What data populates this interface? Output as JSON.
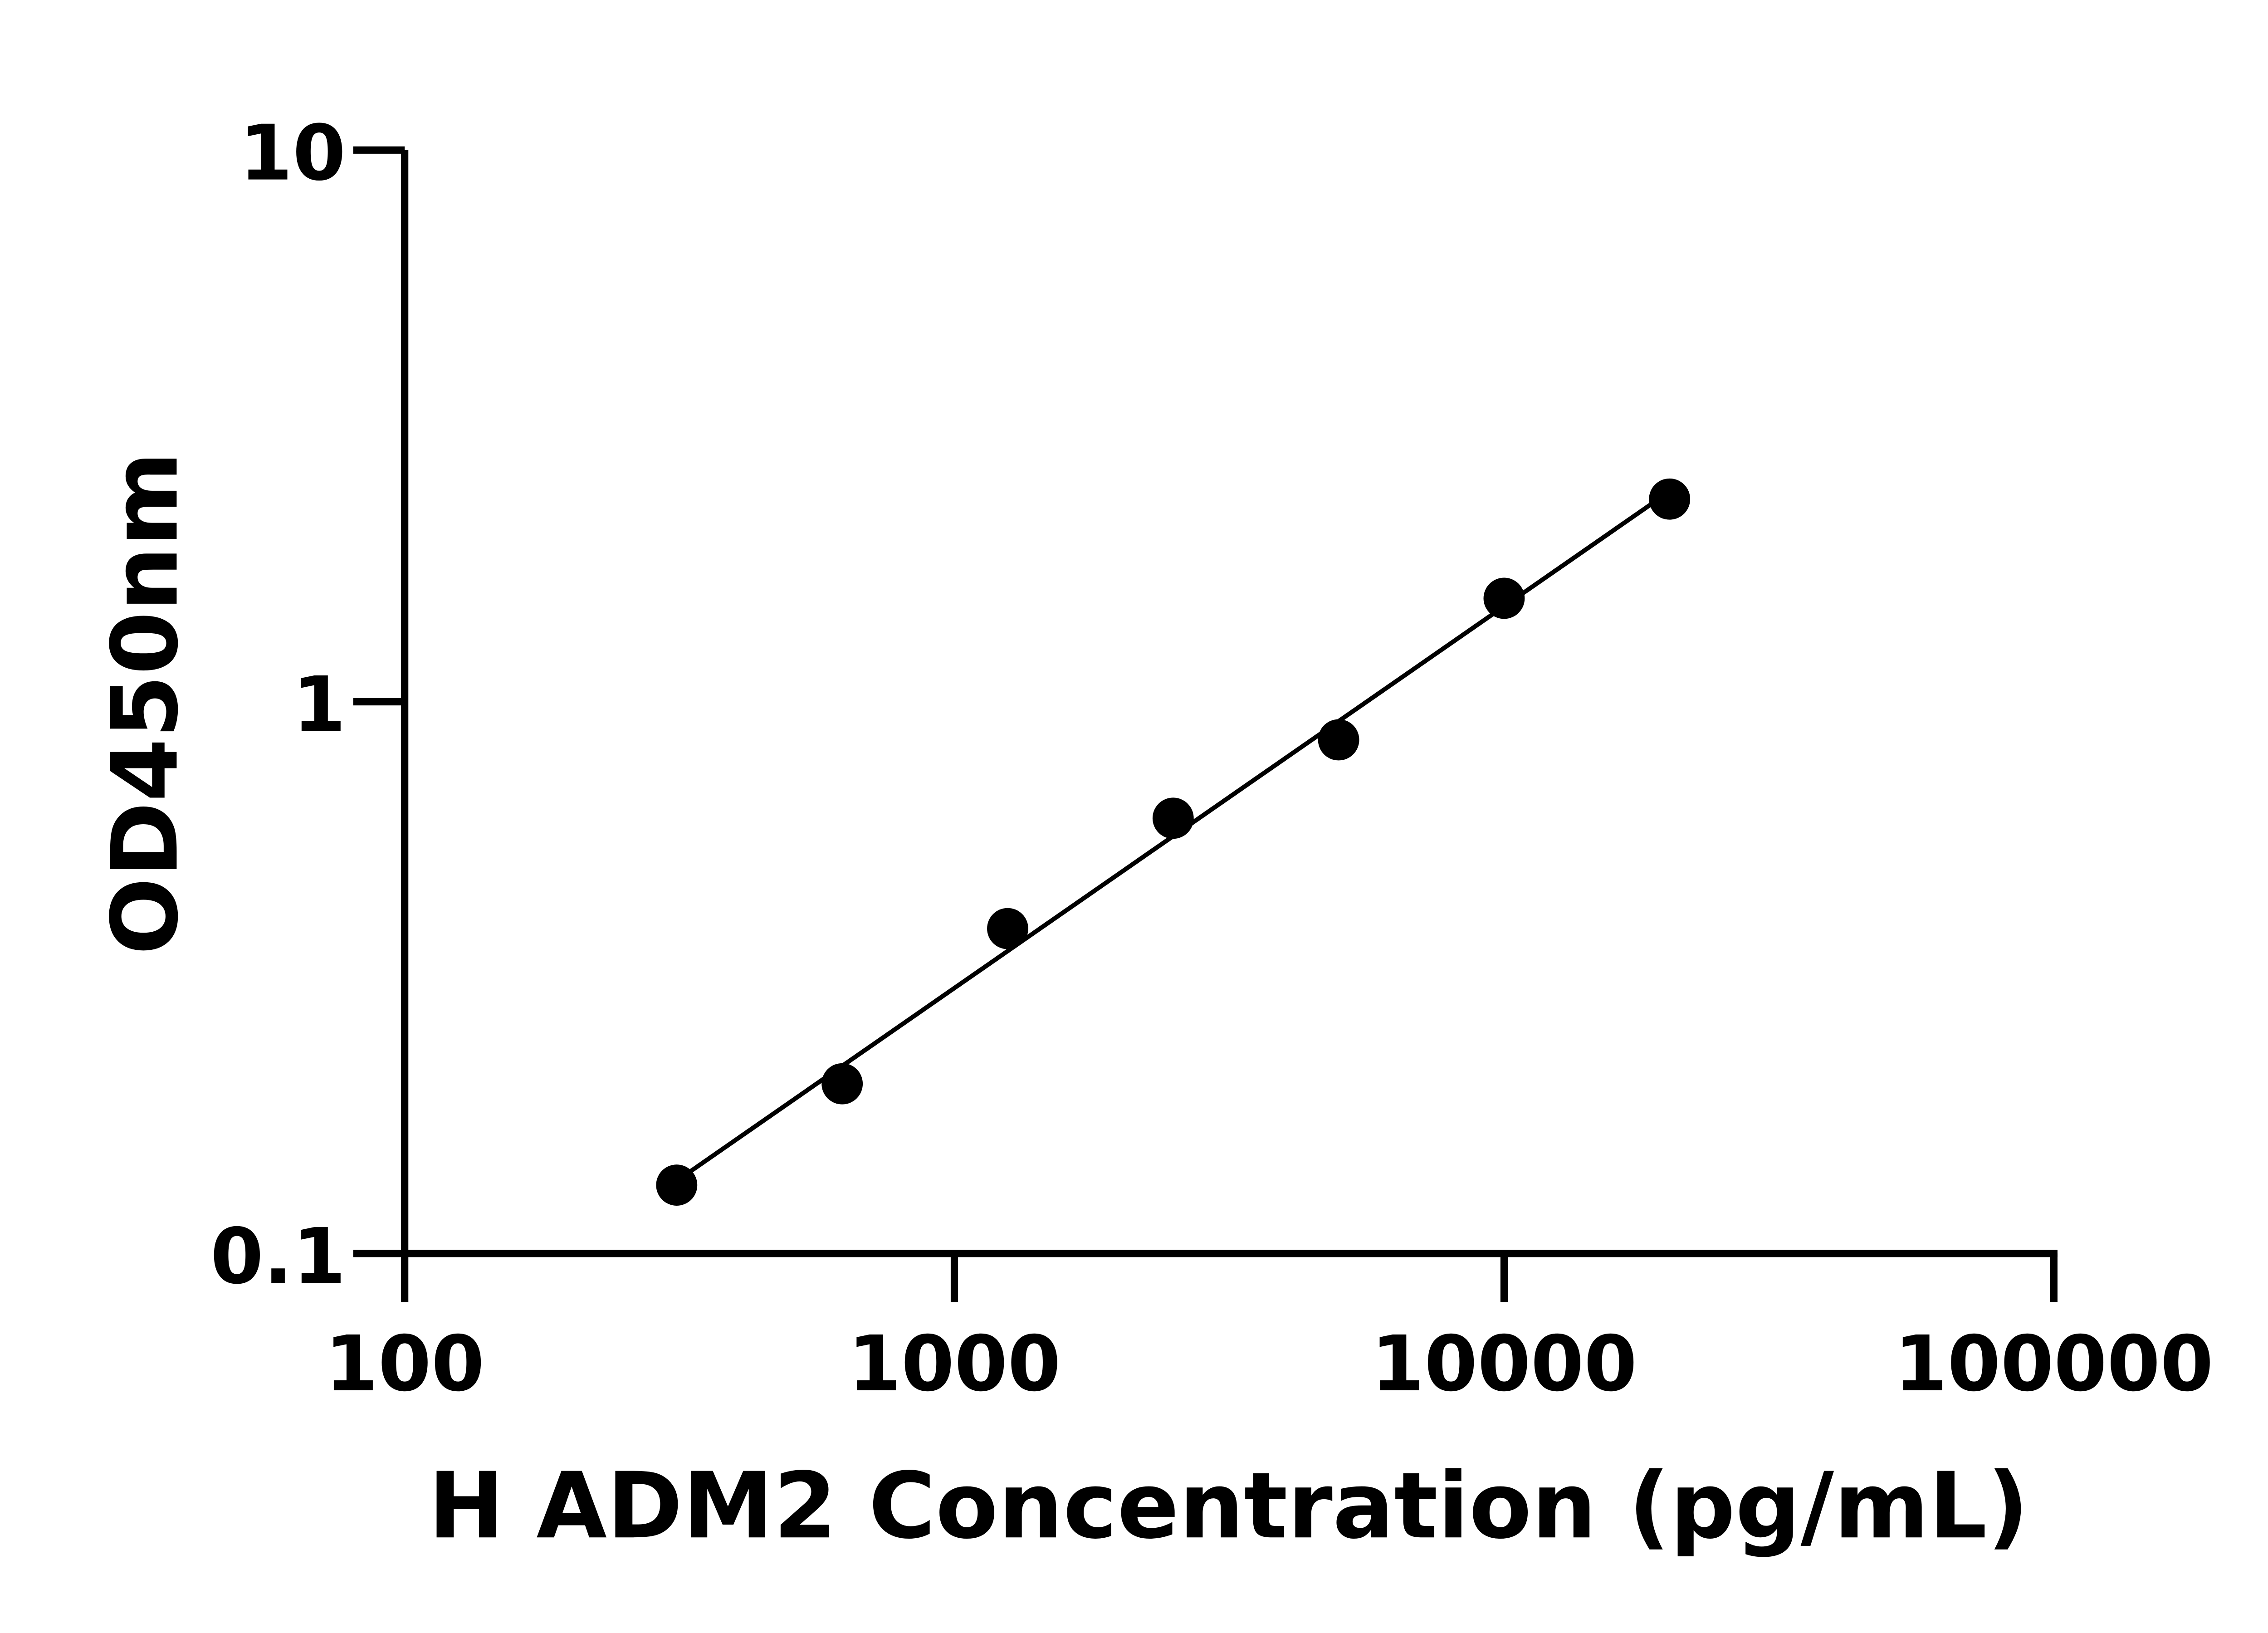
{
  "chart_data": {
    "type": "scatter",
    "xlabel": "H ADM2 Concentration (pg/mL)",
    "ylabel": "OD450nm",
    "x_scale": "log",
    "y_scale": "log",
    "xlim": [
      100,
      100000
    ],
    "ylim": [
      0.1,
      10
    ],
    "x_ticks": [
      "100",
      "1000",
      "10000",
      "100000"
    ],
    "y_ticks": [
      "0.1",
      "1",
      "10"
    ],
    "grid": false,
    "fit_line": "log-log linear fit",
    "x": [
      312.5,
      625,
      1250,
      2500,
      5000,
      10000,
      20000
    ],
    "y": [
      0.133,
      0.203,
      0.388,
      0.615,
      0.853,
      1.54,
      2.33
    ],
    "color": "#000000"
  }
}
